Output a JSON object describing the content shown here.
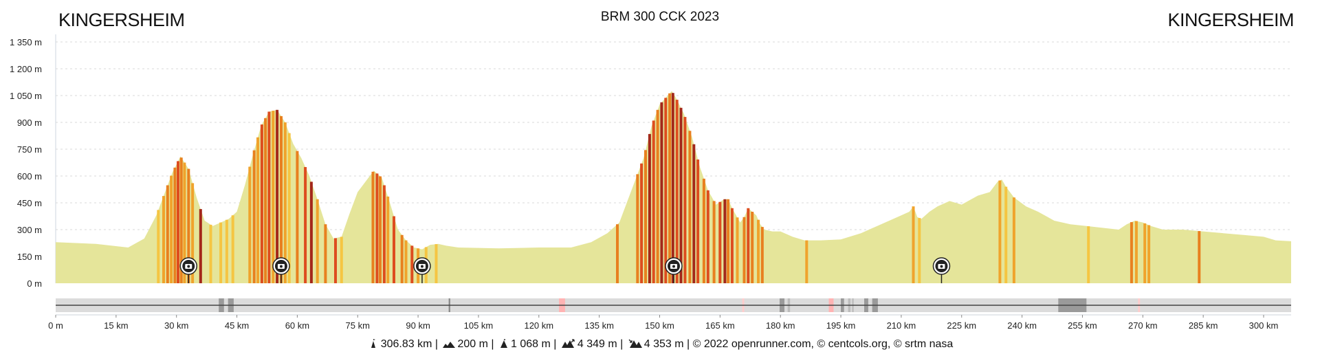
{
  "header": {
    "start_label": "KINGERSHEIM",
    "end_label": "KINGERSHEIM",
    "title": "BRM 300 CCK 2023"
  },
  "chart_data": {
    "type": "area",
    "title": "BRM 300 CCK 2023",
    "xlabel": "",
    "ylabel": "",
    "x_unit": "km",
    "y_unit": "m",
    "xlim": [
      0,
      306.83
    ],
    "ylim": [
      0,
      1350
    ],
    "x_ticks": [
      0,
      15,
      30,
      45,
      60,
      75,
      90,
      105,
      120,
      135,
      150,
      165,
      180,
      195,
      210,
      225,
      240,
      255,
      270,
      285,
      300
    ],
    "x_tick_labels": [
      "0 m",
      "15 km",
      "30 km",
      "45 km",
      "60 km",
      "75 km",
      "90 km",
      "105 km",
      "120 km",
      "135 km",
      "150 km",
      "165 km",
      "180 km",
      "195 km",
      "210 km",
      "225 km",
      "240 km",
      "255 km",
      "270 km",
      "285 km",
      "300 km"
    ],
    "y_ticks": [
      0,
      150,
      300,
      450,
      600,
      750,
      900,
      1050,
      1200,
      1350
    ],
    "y_tick_labels": [
      "0 m",
      "150 m",
      "300 m",
      "450 m",
      "600 m",
      "750 m",
      "900 m",
      "1 050 m",
      "1 200 m",
      "1 350 m"
    ],
    "grid": true,
    "fill_color": "#e5e59a",
    "series": [
      {
        "x": [
          0,
          10,
          18,
          22,
          25,
          27,
          29,
          31,
          33,
          35,
          37,
          39,
          41,
          43,
          45,
          47,
          49,
          51,
          53,
          55,
          57,
          59,
          61,
          63,
          65,
          67,
          69,
          71,
          73,
          75,
          77,
          79,
          81,
          83,
          85,
          87,
          89,
          91,
          93,
          95,
          97,
          100,
          110,
          120,
          128,
          133,
          137,
          140,
          143,
          146,
          148,
          150,
          152,
          153,
          154,
          156,
          158,
          160,
          162,
          164,
          166,
          167,
          168,
          170,
          171,
          172,
          174,
          175,
          176,
          178,
          180,
          183,
          186,
          190,
          195,
          200,
          205,
          210,
          212,
          213,
          214,
          215,
          217,
          219,
          222,
          225,
          229,
          232,
          234,
          235,
          236,
          238,
          241,
          244,
          248,
          252,
          256,
          260,
          264,
          266,
          268,
          270,
          272,
          275,
          280,
          285,
          290,
          295,
          300,
          303,
          306.83
        ],
        "y": [
          230,
          220,
          200,
          250,
          380,
          500,
          620,
          710,
          640,
          480,
          350,
          320,
          340,
          360,
          400,
          550,
          720,
          880,
          960,
          970,
          900,
          780,
          700,
          600,
          470,
          330,
          250,
          260,
          390,
          510,
          570,
          630,
          590,
          450,
          300,
          240,
          200,
          190,
          215,
          220,
          210,
          200,
          195,
          200,
          200,
          230,
          280,
          340,
          520,
          700,
          880,
          1000,
          1050,
          1075,
          1040,
          950,
          820,
          650,
          520,
          440,
          470,
          470,
          420,
          340,
          370,
          420,
          380,
          330,
          300,
          290,
          290,
          260,
          240,
          240,
          245,
          280,
          330,
          380,
          400,
          430,
          370,
          360,
          400,
          430,
          460,
          440,
          490,
          510,
          570,
          580,
          540,
          480,
          430,
          400,
          350,
          330,
          320,
          310,
          300,
          330,
          350,
          340,
          320,
          300,
          300,
          290,
          280,
          270,
          260,
          240,
          235
        ],
        "color": "#e5e59a"
      }
    ],
    "slope_classes": [
      {
        "name": "gentle",
        "color": "#f5c542"
      },
      {
        "name": "moderate",
        "color": "#f0a32c"
      },
      {
        "name": "steep",
        "color": "#e8801f"
      },
      {
        "name": "very-steep",
        "color": "#dd4d1f"
      },
      {
        "name": "extreme",
        "color": "#a3281a"
      }
    ],
    "slope_stripes": [
      {
        "x": 25.5,
        "c": 0
      },
      {
        "x": 26.8,
        "c": 1
      },
      {
        "x": 27.8,
        "c": 2
      },
      {
        "x": 28.7,
        "c": 1
      },
      {
        "x": 29.6,
        "c": 2
      },
      {
        "x": 30.4,
        "c": 3
      },
      {
        "x": 31.2,
        "c": 2
      },
      {
        "x": 32.0,
        "c": 1
      },
      {
        "x": 33.0,
        "c": 2
      },
      {
        "x": 34.0,
        "c": 1
      },
      {
        "x": 36.0,
        "c": 4
      },
      {
        "x": 38.5,
        "c": 0
      },
      {
        "x": 41.0,
        "c": 0
      },
      {
        "x": 42.5,
        "c": 0
      },
      {
        "x": 44.0,
        "c": 0
      },
      {
        "x": 48.2,
        "c": 1
      },
      {
        "x": 49.3,
        "c": 2
      },
      {
        "x": 50.2,
        "c": 1
      },
      {
        "x": 51.2,
        "c": 3
      },
      {
        "x": 52.1,
        "c": 2
      },
      {
        "x": 53.0,
        "c": 3
      },
      {
        "x": 54.0,
        "c": 1
      },
      {
        "x": 55.0,
        "c": 4
      },
      {
        "x": 56.0,
        "c": 2
      },
      {
        "x": 57.0,
        "c": 1
      },
      {
        "x": 58.0,
        "c": 0
      },
      {
        "x": 60.0,
        "c": 2
      },
      {
        "x": 62.0,
        "c": 3
      },
      {
        "x": 63.5,
        "c": 4
      },
      {
        "x": 65.0,
        "c": 1
      },
      {
        "x": 67.0,
        "c": 2
      },
      {
        "x": 69.5,
        "c": 3
      },
      {
        "x": 71.0,
        "c": 0
      },
      {
        "x": 78.8,
        "c": 2
      },
      {
        "x": 79.8,
        "c": 3
      },
      {
        "x": 80.6,
        "c": 2
      },
      {
        "x": 81.6,
        "c": 3
      },
      {
        "x": 82.5,
        "c": 1
      },
      {
        "x": 84.0,
        "c": 3
      },
      {
        "x": 86.0,
        "c": 2
      },
      {
        "x": 87.0,
        "c": 1
      },
      {
        "x": 88.5,
        "c": 3
      },
      {
        "x": 90.0,
        "c": 1
      },
      {
        "x": 92.0,
        "c": 0
      },
      {
        "x": 94.5,
        "c": 0
      },
      {
        "x": 139.5,
        "c": 2
      },
      {
        "x": 144.5,
        "c": 2
      },
      {
        "x": 145.5,
        "c": 3
      },
      {
        "x": 146.5,
        "c": 2
      },
      {
        "x": 147.5,
        "c": 4
      },
      {
        "x": 148.5,
        "c": 3
      },
      {
        "x": 149.5,
        "c": 2
      },
      {
        "x": 150.5,
        "c": 4
      },
      {
        "x": 151.5,
        "c": 3
      },
      {
        "x": 152.5,
        "c": 2
      },
      {
        "x": 153.3,
        "c": 4
      },
      {
        "x": 154.3,
        "c": 3
      },
      {
        "x": 155.3,
        "c": 4
      },
      {
        "x": 156.3,
        "c": 3
      },
      {
        "x": 157.5,
        "c": 2
      },
      {
        "x": 158.5,
        "c": 4
      },
      {
        "x": 159.5,
        "c": 3
      },
      {
        "x": 161.0,
        "c": 2
      },
      {
        "x": 162.0,
        "c": 3
      },
      {
        "x": 163.5,
        "c": 2
      },
      {
        "x": 165.0,
        "c": 3
      },
      {
        "x": 166.2,
        "c": 4
      },
      {
        "x": 167.0,
        "c": 2
      },
      {
        "x": 168.0,
        "c": 3
      },
      {
        "x": 169.3,
        "c": 1
      },
      {
        "x": 171.0,
        "c": 2
      },
      {
        "x": 172.0,
        "c": 3
      },
      {
        "x": 173.0,
        "c": 2
      },
      {
        "x": 174.5,
        "c": 1
      },
      {
        "x": 175.5,
        "c": 2
      },
      {
        "x": 186.5,
        "c": 1
      },
      {
        "x": 213.0,
        "c": 1
      },
      {
        "x": 214.5,
        "c": 0
      },
      {
        "x": 234.5,
        "c": 1
      },
      {
        "x": 236.0,
        "c": 0
      },
      {
        "x": 238.0,
        "c": 1
      },
      {
        "x": 256.5,
        "c": 0
      },
      {
        "x": 267.2,
        "c": 2
      },
      {
        "x": 268.4,
        "c": 1
      },
      {
        "x": 270.5,
        "c": 1
      },
      {
        "x": 271.5,
        "c": 1
      },
      {
        "x": 284.0,
        "c": 2
      }
    ],
    "photo_markers": [
      33,
      56,
      91,
      153.5,
      220
    ],
    "surface_marks": [
      {
        "from": 40.5,
        "to": 41.8,
        "color": "#9a9a9a"
      },
      {
        "from": 42.8,
        "to": 44.2,
        "color": "#9a9a9a"
      },
      {
        "from": 97.6,
        "to": 98.0,
        "color": "#8a8a8a"
      },
      {
        "from": 125.0,
        "to": 126.5,
        "color": "#ffb3b3"
      },
      {
        "from": 170.5,
        "to": 171.0,
        "color": "#ffcccc"
      },
      {
        "from": 179.8,
        "to": 181.0,
        "color": "#9a9a9a"
      },
      {
        "from": 181.8,
        "to": 182.4,
        "color": "#bcbcbc"
      },
      {
        "from": 192.0,
        "to": 193.2,
        "color": "#ffb3b3"
      },
      {
        "from": 195.0,
        "to": 195.8,
        "color": "#9a9a9a"
      },
      {
        "from": 196.8,
        "to": 197.4,
        "color": "#bcbcbc"
      },
      {
        "from": 197.8,
        "to": 198.2,
        "color": "#bcbcbc"
      },
      {
        "from": 200.8,
        "to": 201.8,
        "color": "#9a9a9a"
      },
      {
        "from": 202.8,
        "to": 204.2,
        "color": "#9a9a9a"
      },
      {
        "from": 249.0,
        "to": 256.0,
        "color": "#9a9a9a"
      },
      {
        "from": 268.8,
        "to": 269.3,
        "color": "#ffcccc"
      }
    ]
  },
  "footer": {
    "distance": "306.83 km",
    "min_altitude": "200 m",
    "max_altitude": "1 068 m",
    "ascent": "4 349 m",
    "descent": "4 353 m",
    "credits": "© 2022 openrunner.com, © centcols.org, © srtm nasa",
    "separator": "|",
    "icons": [
      "distance-icon",
      "min-altitude-icon",
      "max-altitude-icon",
      "ascent-icon",
      "descent-icon"
    ]
  }
}
